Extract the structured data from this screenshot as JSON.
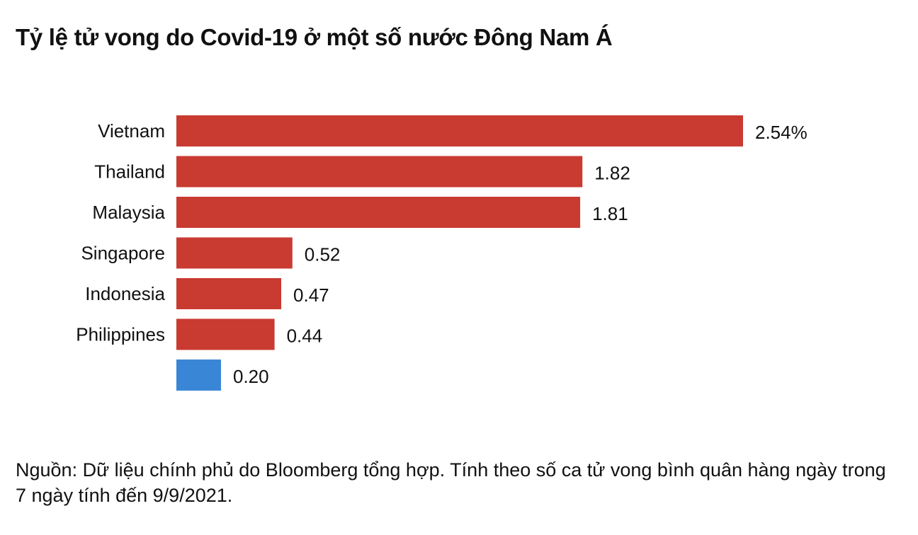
{
  "chart_data": {
    "type": "bar",
    "orientation": "horizontal",
    "title": "Tỷ lệ tử vong do Covid-19 ở một số nước Đông Nam Á",
    "categories": [
      "Vietnam",
      "Thailand",
      "Malaysia",
      "Singapore",
      "Indonesia",
      "Philippines",
      ""
    ],
    "values": [
      2.54,
      1.82,
      1.81,
      0.52,
      0.47,
      0.44,
      0.2
    ],
    "value_labels": [
      "2.54%",
      "1.82",
      "1.81",
      "0.52",
      "0.47",
      "0.44",
      "0.20"
    ],
    "colors": [
      "#c93a31",
      "#c93a31",
      "#c93a31",
      "#c93a31",
      "#c93a31",
      "#c93a31",
      "#3a86d6"
    ],
    "xlim": [
      0,
      2.54
    ],
    "grid": false,
    "legend": "none"
  },
  "source_note": "Nguồn: Dữ liệu chính phủ do Bloomberg tổng hợp. Tính theo số ca tử vong bình quân hàng ngày trong 7 ngày tính đến 9/9/2021."
}
